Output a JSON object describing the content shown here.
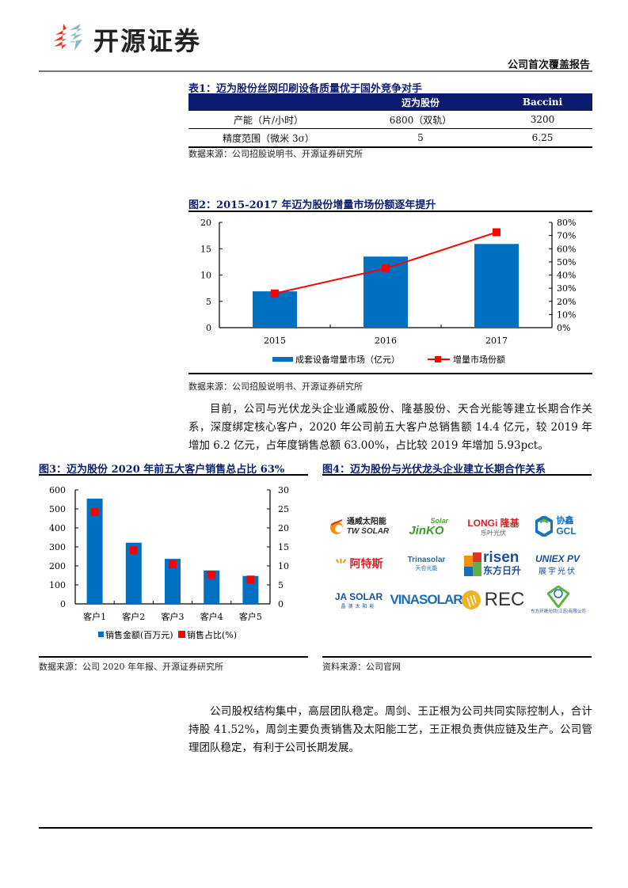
{
  "header": {
    "brand": "开源证券",
    "report_type": "公司首次覆盖报告"
  },
  "table1": {
    "title": "表1：迈为股份丝网印刷设备质量优于国外竞争对手",
    "columns": [
      "",
      "迈为股份",
      "Baccini"
    ],
    "rows": [
      [
        "产能（片/小时）",
        "6800（双轨）",
        "3200"
      ],
      [
        "精度范围（微米 3σ）",
        "5",
        "6.25"
      ]
    ],
    "source": "数据来源：公司招股说明书、开源证券研究所"
  },
  "figure2": {
    "title": "图2：2015-2017 年迈为股份增量市场份额逐年提升",
    "source": "数据来源：公司招股说明书、开源证券研究所"
  },
  "paragraph1": "目前，公司与光伏龙头企业通威股份、隆基股份、天合光能等建立长期合作关系，深度绑定核心客户，2020 年公司前五大客户总销售额 14.4 亿元，较 2019 年增加 6.2 亿元，占年度销售总额 63.00%，占比较 2019 年增加 5.93pct。",
  "figure3": {
    "title": "图3：迈为股份 2020 年前五大客户销售总占比 63%",
    "source": "数据来源：公司 2020 年年报、开源证券研究所"
  },
  "figure4": {
    "title": "图4：迈为股份与光伏龙头企业建立长期合作关系",
    "source": "资料来源：公司官网",
    "logos": [
      {
        "name": "通威太阳能",
        "sub": "TW SOLAR"
      },
      {
        "name": "JinKO",
        "sub": "Solar"
      },
      {
        "name": "LONGi 隆基",
        "sub": "乐叶光伏"
      },
      {
        "name": "协鑫",
        "sub": "GCL"
      },
      {
        "name": "阿特斯",
        "sub": ""
      },
      {
        "name": "Trinasolar",
        "sub": "天合光能"
      },
      {
        "name": "risen",
        "sub": "东方日升"
      },
      {
        "name": "UNIEX PV",
        "sub": "展宇光伏"
      },
      {
        "name": "JA SOLAR",
        "sub": "晶澳太阳能"
      },
      {
        "name": "VINASOLAR",
        "sub": ""
      },
      {
        "name": "REC",
        "sub": ""
      },
      {
        "name": "东方环晟光伏(江苏)有限公司",
        "sub": ""
      }
    ]
  },
  "paragraph2": "公司股权结构集中，高层团队稳定。周剑、王正根为公司共同实际控制人，合计持股 41.52%，周剑主要负责销售及太阳能工艺，王正根负责供应链及生产。公司管理团队稳定，有利于公司长期发展。",
  "colors": {
    "bar_blue": "#0070c0",
    "marker_red": "#ff0000",
    "title_navy": "#0b1d6b",
    "table_header": "#0d1b6e"
  },
  "chart_data": [
    {
      "type": "bar",
      "title": "2015-2017 年迈为股份增量市场份额逐年提升",
      "categories": [
        "2015",
        "2016",
        "2017"
      ],
      "series": [
        {
          "name": "成套设备增量市场（亿元）",
          "type": "bar",
          "axis": "left",
          "values": [
            6.9,
            13.5,
            15.9
          ]
        },
        {
          "name": "增量市场份额",
          "type": "line",
          "axis": "right",
          "values": [
            26,
            45,
            72.5
          ],
          "unit": "%"
        }
      ],
      "ylim_left": [
        0,
        20
      ],
      "yticks_left": [
        "0",
        "5",
        "10",
        "15",
        "20"
      ],
      "ylim_right": [
        0,
        80
      ],
      "yticks_right": [
        "0%",
        "10%",
        "20%",
        "30%",
        "40%",
        "50%",
        "60%",
        "70%",
        "80%"
      ],
      "legend": [
        "成套设备增量市场（亿元）",
        "增量市场份额"
      ],
      "legend_position": "bottom",
      "grid": false
    },
    {
      "type": "bar",
      "title": "迈为股份 2020 年前五大客户销售总占比 63%",
      "categories": [
        "客户1",
        "客户2",
        "客户3",
        "客户4",
        "客户5"
      ],
      "series": [
        {
          "name": "销售金额(百万元)",
          "type": "bar",
          "axis": "left",
          "values": [
            554,
            322,
            237,
            176,
            147
          ]
        },
        {
          "name": "销售占比(%)",
          "type": "marker",
          "axis": "right",
          "values": [
            24.2,
            14.1,
            10.4,
            7.7,
            6.4
          ]
        }
      ],
      "ylim_left": [
        0,
        600
      ],
      "yticks_left": [
        "0",
        "100",
        "200",
        "300",
        "400",
        "500",
        "600"
      ],
      "ylim_right": [
        0,
        30
      ],
      "yticks_right": [
        "0",
        "5",
        "10",
        "15",
        "20",
        "25",
        "30"
      ],
      "legend": [
        "销售金额(百万元)",
        "销售占比(%)"
      ],
      "legend_position": "bottom",
      "grid": false
    }
  ]
}
